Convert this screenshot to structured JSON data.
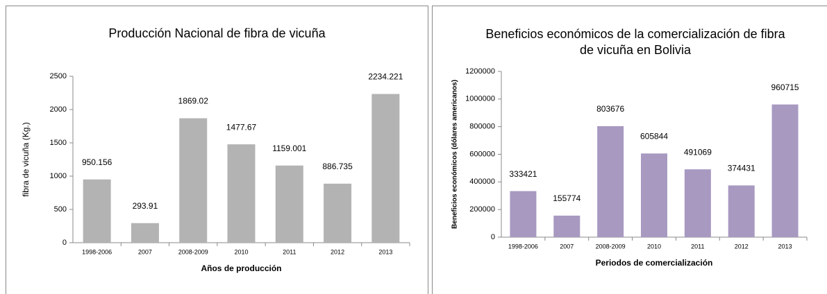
{
  "chart_data": [
    {
      "type": "bar",
      "title": "Producción Nacional  de fibra de vicuña",
      "y_label": "fibra de vicuña (Kg.)",
      "x_label": "Años de producción",
      "categories": [
        "1998-2006",
        "2007",
        "2008-2009",
        "2010",
        "2011",
        "2012",
        "2013"
      ],
      "values": [
        950.156,
        293.91,
        1869.02,
        1477.67,
        1159.001,
        886.735,
        2234.221
      ],
      "color": "#b3b3b3",
      "ylim": [
        0,
        2500
      ],
      "yticks": [
        0,
        500,
        1000,
        1500,
        2000,
        2500
      ]
    },
    {
      "type": "bar",
      "title": "Beneficios económicos de la comercialización de fibra de vicuña en Bolivia",
      "y_label": "Beneficios económicos (dólares americanos)",
      "x_label": "Periodos de comercialización",
      "categories": [
        "1998-2006",
        "2007",
        "2008-2009",
        "2010",
        "2011",
        "2012",
        "2013"
      ],
      "values": [
        333421,
        155774,
        803676,
        605844,
        491069,
        374431,
        960715
      ],
      "color": "#a899c1",
      "ylim": [
        0,
        1200000
      ],
      "yticks": [
        0,
        200000,
        400000,
        600000,
        800000,
        1000000,
        1200000
      ]
    }
  ]
}
